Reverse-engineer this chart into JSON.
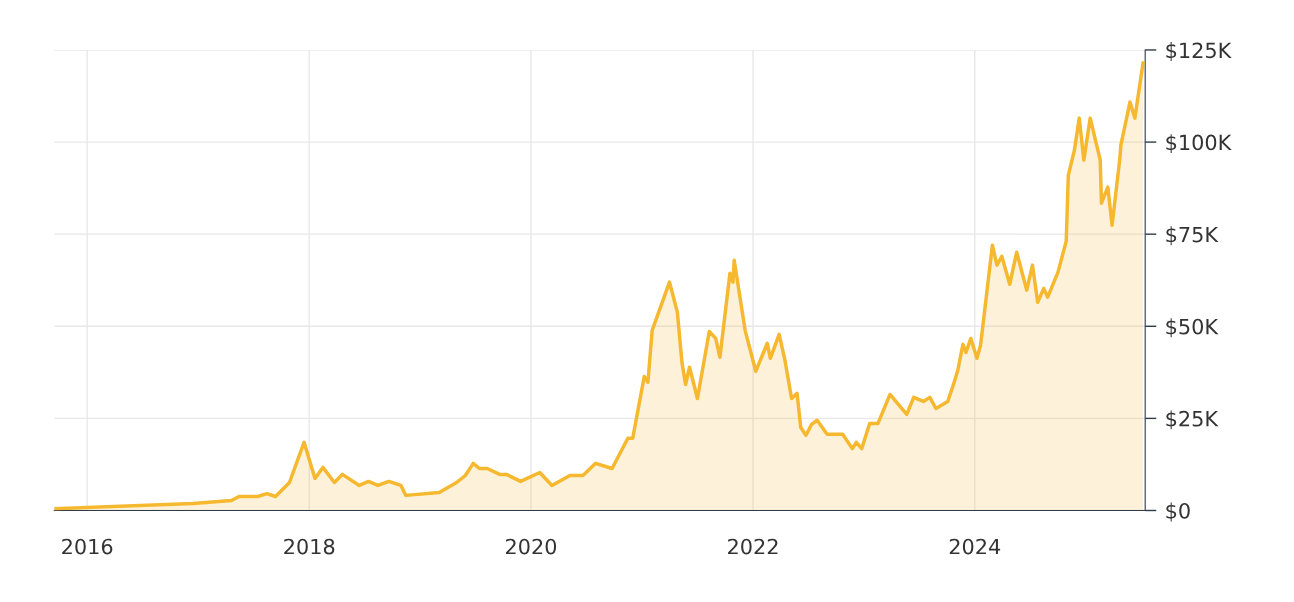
{
  "chart_data": {
    "type": "area",
    "x": [
      "2015-09-15",
      "2016-12-15",
      "2017-04-20",
      "2017-05-15",
      "2017-07-15",
      "2017-08-15",
      "2017-09-12",
      "2017-10-28",
      "2017-12-15",
      "2018-01-20",
      "2018-02-15",
      "2018-03-25",
      "2018-04-20",
      "2018-06-15",
      "2018-07-15",
      "2018-08-15",
      "2018-09-20",
      "2018-10-30",
      "2018-11-15",
      "2019-03-05",
      "2019-05-01",
      "2019-05-30",
      "2019-06-25",
      "2019-07-15",
      "2019-08-10",
      "2019-09-20",
      "2019-10-12",
      "2019-11-28",
      "2020-01-30",
      "2020-03-10",
      "2020-05-08",
      "2020-06-20",
      "2020-08-01",
      "2020-09-24",
      "2020-11-15",
      "2020-12-01",
      "2021-01-08",
      "2021-01-20",
      "2021-02-03",
      "2021-04-01",
      "2021-04-27",
      "2021-05-12",
      "2021-05-24",
      "2021-06-06",
      "2021-07-02",
      "2021-08-10",
      "2021-08-31",
      "2021-09-14",
      "2021-10-17",
      "2021-10-27",
      "2021-10-31",
      "2021-12-06",
      "2022-01-10",
      "2022-02-17",
      "2022-02-27",
      "2022-03-28",
      "2022-04-16",
      "2022-05-08",
      "2022-05-26",
      "2022-06-07",
      "2022-06-24",
      "2022-07-13",
      "2022-07-31",
      "2022-09-02",
      "2022-10-23",
      "2022-11-24",
      "2022-12-07",
      "2022-12-25",
      "2023-01-20",
      "2023-02-16",
      "2023-03-28",
      "2023-05-22",
      "2023-06-14",
      "2023-07-16",
      "2023-08-06",
      "2023-08-26",
      "2023-10-04",
      "2023-10-24",
      "2023-11-06",
      "2023-11-23",
      "2023-12-03",
      "2023-12-19",
      "2024-01-08",
      "2024-01-20",
      "2024-02-28",
      "2024-03-14",
      "2024-03-30",
      "2024-04-25",
      "2024-05-18",
      "2024-06-20",
      "2024-07-09",
      "2024-07-26",
      "2024-08-15",
      "2024-08-28",
      "2024-10-01",
      "2024-10-28",
      "2024-11-04",
      "2024-11-24",
      "2024-12-10",
      "2024-12-25",
      "2025-01-15",
      "2025-02-17",
      "2025-02-21",
      "2025-03-14",
      "2025-03-28",
      "2025-04-22",
      "2025-04-26",
      "2025-05-26",
      "2025-06-11",
      "2025-07-08"
    ],
    "series": [
      {
        "color": "#f5b82e",
        "values": [
          500,
          1900,
          2700,
          3800,
          3800,
          4600,
          3800,
          7600,
          18500,
          8700,
          11700,
          7600,
          9800,
          6800,
          7900,
          6800,
          7900,
          6800,
          4100,
          4900,
          7600,
          9500,
          12800,
          11400,
          11400,
          9800,
          9800,
          7900,
          10300,
          6800,
          9500,
          9500,
          12800,
          11400,
          19600,
          19600,
          36400,
          34800,
          48900,
          62000,
          53800,
          40200,
          34200,
          38900,
          30400,
          48600,
          46700,
          41600,
          64400,
          62000,
          67900,
          48900,
          37800,
          45400,
          41300,
          47800,
          40800,
          30400,
          31800,
          22600,
          20400,
          23400,
          24500,
          20700,
          20700,
          16800,
          18500,
          16800,
          23600,
          23600,
          31500,
          26100,
          30700,
          29600,
          30700,
          27700,
          29600,
          34500,
          38000,
          45100,
          42900,
          46700,
          41300,
          44800,
          72000,
          66600,
          69000,
          61400,
          70100,
          59800,
          66600,
          56500,
          60300,
          57900,
          64700,
          73100,
          91000,
          97800,
          106500,
          95100,
          106500,
          95100,
          83400,
          87800,
          77400,
          95100,
          99200,
          110900,
          106500,
          121500
        ]
      }
    ],
    "xlim": [
      "2015-09-15",
      "2025-07-15"
    ],
    "xticks": [
      {
        "value": "2016",
        "label": "2016"
      },
      {
        "value": "2018",
        "label": "2018"
      },
      {
        "value": "2020",
        "label": "2020"
      },
      {
        "value": "2022",
        "label": "2022"
      },
      {
        "value": "2024",
        "label": "2024"
      }
    ],
    "ylim": [
      0,
      125000
    ],
    "yticks": [
      {
        "value": 0,
        "label": "$0"
      },
      {
        "value": 25000,
        "label": "$25K"
      },
      {
        "value": 50000,
        "label": "$50K"
      },
      {
        "value": 75000,
        "label": "$75K"
      },
      {
        "value": 100000,
        "label": "$100K"
      },
      {
        "value": 125000,
        "label": "$125K"
      }
    ],
    "grid": true
  }
}
